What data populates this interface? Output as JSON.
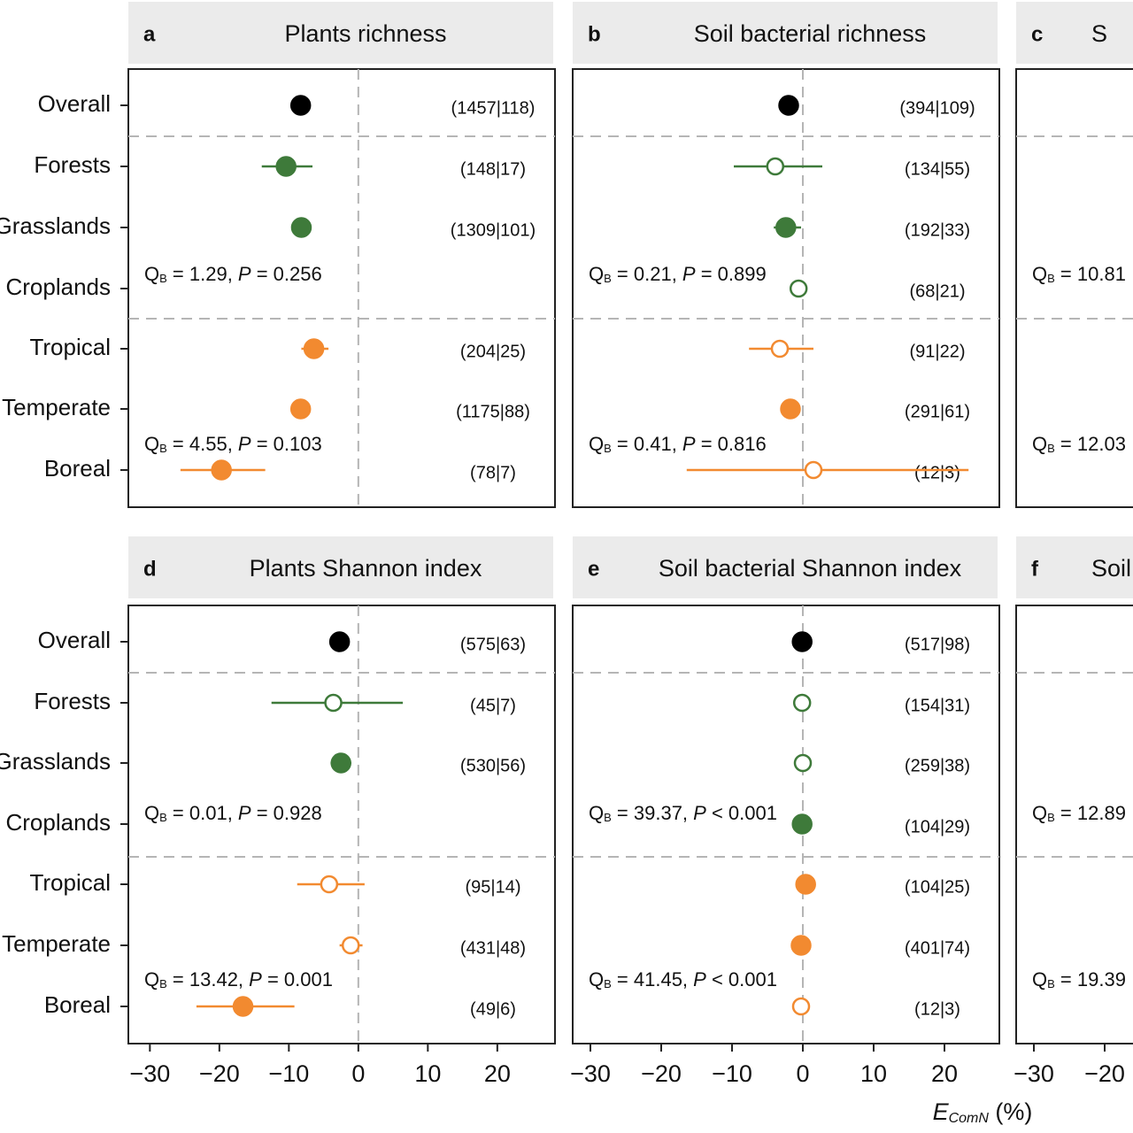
{
  "chart_data": [
    {
      "type": "forest",
      "letter": "a",
      "title": "Plants richness",
      "categories": [
        "Overall",
        "Forests",
        "Grasslands",
        "Croplands",
        "Tropical",
        "Temperate",
        "Boreal"
      ],
      "values": [
        -8.3,
        -10.4,
        -8.2,
        null,
        -6.4,
        -8.3,
        -19.7
      ],
      "ci_low": [
        -9.3,
        -13.9,
        -9.2,
        null,
        -8.2,
        -9.3,
        -25.6
      ],
      "ci_high": [
        -7.3,
        -6.6,
        -7.2,
        null,
        -4.3,
        -7.3,
        -13.4
      ],
      "colors": [
        "#000000",
        "#3e7a3a",
        "#3e7a3a",
        "#3e7a3a",
        "#f28a30",
        "#f28a30",
        "#f28a30"
      ],
      "filled": [
        true,
        true,
        true,
        true,
        true,
        true,
        true
      ],
      "n_labels": [
        "(1457|118)",
        "(148|17)",
        "(1309|101)",
        null,
        "(204|25)",
        "(1175|88)",
        "(78|7)"
      ],
      "annotations": [
        {
          "q": "Q",
          "sub": "B",
          "text": " = 1.29, ",
          "p": "P",
          "rest": " = 0.256"
        },
        {
          "q": "Q",
          "sub": "B",
          "text": " = 4.55, ",
          "p": "P",
          "rest": " = 0.103"
        }
      ],
      "xlim": [
        -33.1,
        28.3
      ]
    },
    {
      "type": "forest",
      "letter": "b",
      "title": "Soil bacterial richness",
      "values": [
        -2.0,
        -3.9,
        -2.4,
        -0.6,
        -3.25,
        -1.75,
        1.5
      ],
      "ci_low": [
        -2.8,
        -9.75,
        -4.1,
        -1.2,
        -7.6,
        -2.5,
        -16.4
      ],
      "ci_high": [
        -1.2,
        2.75,
        -0.25,
        0.0,
        1.5,
        -1.0,
        23.4
      ],
      "colors": [
        "#000000",
        "#3e7a3a",
        "#3e7a3a",
        "#3e7a3a",
        "#f28a30",
        "#f28a30",
        "#f28a30"
      ],
      "filled": [
        true,
        false,
        true,
        false,
        false,
        true,
        false
      ],
      "n_labels": [
        "(394|109)",
        "(134|55)",
        "(192|33)",
        "(68|21)",
        "(91|22)",
        "(291|61)",
        "(12|3)"
      ],
      "annotations": [
        {
          "q": "Q",
          "sub": "B",
          "text": " = 0.21, ",
          "p": "P",
          "rest": " = 0.899"
        },
        {
          "q": "Q",
          "sub": "B",
          "text": " = 0.41, ",
          "p": "P",
          "rest": " = 0.816"
        }
      ],
      "xlim": [
        -32.5,
        27.75
      ]
    },
    {
      "type": "forest",
      "letter": "c",
      "title": "S",
      "annotations": [
        {
          "q": "Q",
          "sub": "B",
          "text": " = 10.81"
        },
        {
          "q": "Q",
          "sub": "B",
          "text": " = 12.03"
        }
      ],
      "xlim": [
        -32.5,
        27.75
      ]
    },
    {
      "type": "forest",
      "letter": "d",
      "title": "Plants Shannon index",
      "categories": [
        "Overall",
        "Forests",
        "Grasslands",
        "Croplands",
        "Tropical",
        "Temperate",
        "Boreal"
      ],
      "values": [
        -2.7,
        -3.6,
        -2.5,
        null,
        -4.2,
        -1.1,
        -16.6
      ],
      "ci_low": [
        -4.1,
        -12.5,
        -4.0,
        null,
        -8.8,
        -2.7,
        -23.3
      ],
      "ci_high": [
        -1.3,
        6.4,
        -1.0,
        null,
        0.9,
        0.6,
        -9.2
      ],
      "colors": [
        "#000000",
        "#3e7a3a",
        "#3e7a3a",
        "#3e7a3a",
        "#f28a30",
        "#f28a30",
        "#f28a30"
      ],
      "filled": [
        true,
        false,
        true,
        true,
        false,
        false,
        true
      ],
      "n_labels": [
        "(575|63)",
        "(45|7)",
        "(530|56)",
        null,
        "(95|14)",
        "(431|48)",
        "(49|6)"
      ],
      "annotations": [
        {
          "q": "Q",
          "sub": "B",
          "text": " = 0.01, ",
          "p": "P",
          "rest": " = 0.928"
        },
        {
          "q": "Q",
          "sub": "B",
          "text": " = 13.42, ",
          "p": "P",
          "rest": " = 0.001"
        }
      ],
      "xlim": [
        -33.1,
        28.3
      ],
      "xticks": [
        {
          "value": -30,
          "label": "−30"
        },
        {
          "value": -20,
          "label": "−20"
        },
        {
          "value": -10,
          "label": "−10"
        },
        0,
        10,
        20
      ]
    },
    {
      "type": "forest",
      "letter": "e",
      "title": "Soil bacterial Shannon index",
      "values": [
        -0.1,
        -0.1,
        0.0,
        -0.1,
        0.4,
        -0.25,
        -0.25
      ],
      "ci_low": [
        -0.5,
        -0.5,
        -0.4,
        -0.5,
        0.0,
        -0.65,
        -1.05
      ],
      "ci_high": [
        0.3,
        0.3,
        0.4,
        0.3,
        0.8,
        0.15,
        0.55
      ],
      "colors": [
        "#000000",
        "#3e7a3a",
        "#3e7a3a",
        "#3e7a3a",
        "#f28a30",
        "#f28a30",
        "#f28a30"
      ],
      "filled": [
        true,
        false,
        false,
        true,
        true,
        true,
        false
      ],
      "n_labels": [
        "(517|98)",
        "(154|31)",
        "(259|38)",
        "(104|29)",
        "(104|25)",
        "(401|74)",
        "(12|3)"
      ],
      "annotations": [
        {
          "q": "Q",
          "sub": "B",
          "text": " = 39.37, ",
          "p": "P",
          "rest": " < 0.001"
        },
        {
          "q": "Q",
          "sub": "B",
          "text": " = 41.45, ",
          "p": "P",
          "rest": " < 0.001"
        }
      ],
      "xlim": [
        -32.5,
        27.75
      ],
      "xticks": [
        {
          "value": -30,
          "label": "−30"
        },
        {
          "value": -20,
          "label": "−20"
        },
        {
          "value": -10,
          "label": "−10"
        },
        0,
        10,
        20
      ],
      "xlabel": {
        "e": "E",
        "sub": "ComN",
        "unit": " (%)"
      }
    },
    {
      "type": "forest",
      "letter": "f",
      "title": "Soil",
      "annotations": [
        {
          "q": "Q",
          "sub": "B",
          "text": " = 12.89"
        },
        {
          "q": "Q",
          "sub": "B",
          "text": " = 19.39"
        }
      ],
      "xlim": [
        -32.5,
        27.75
      ],
      "xticks": [
        {
          "value": -30,
          "label": "−30"
        },
        {
          "value": -20,
          "label": "−20"
        }
      ]
    }
  ]
}
